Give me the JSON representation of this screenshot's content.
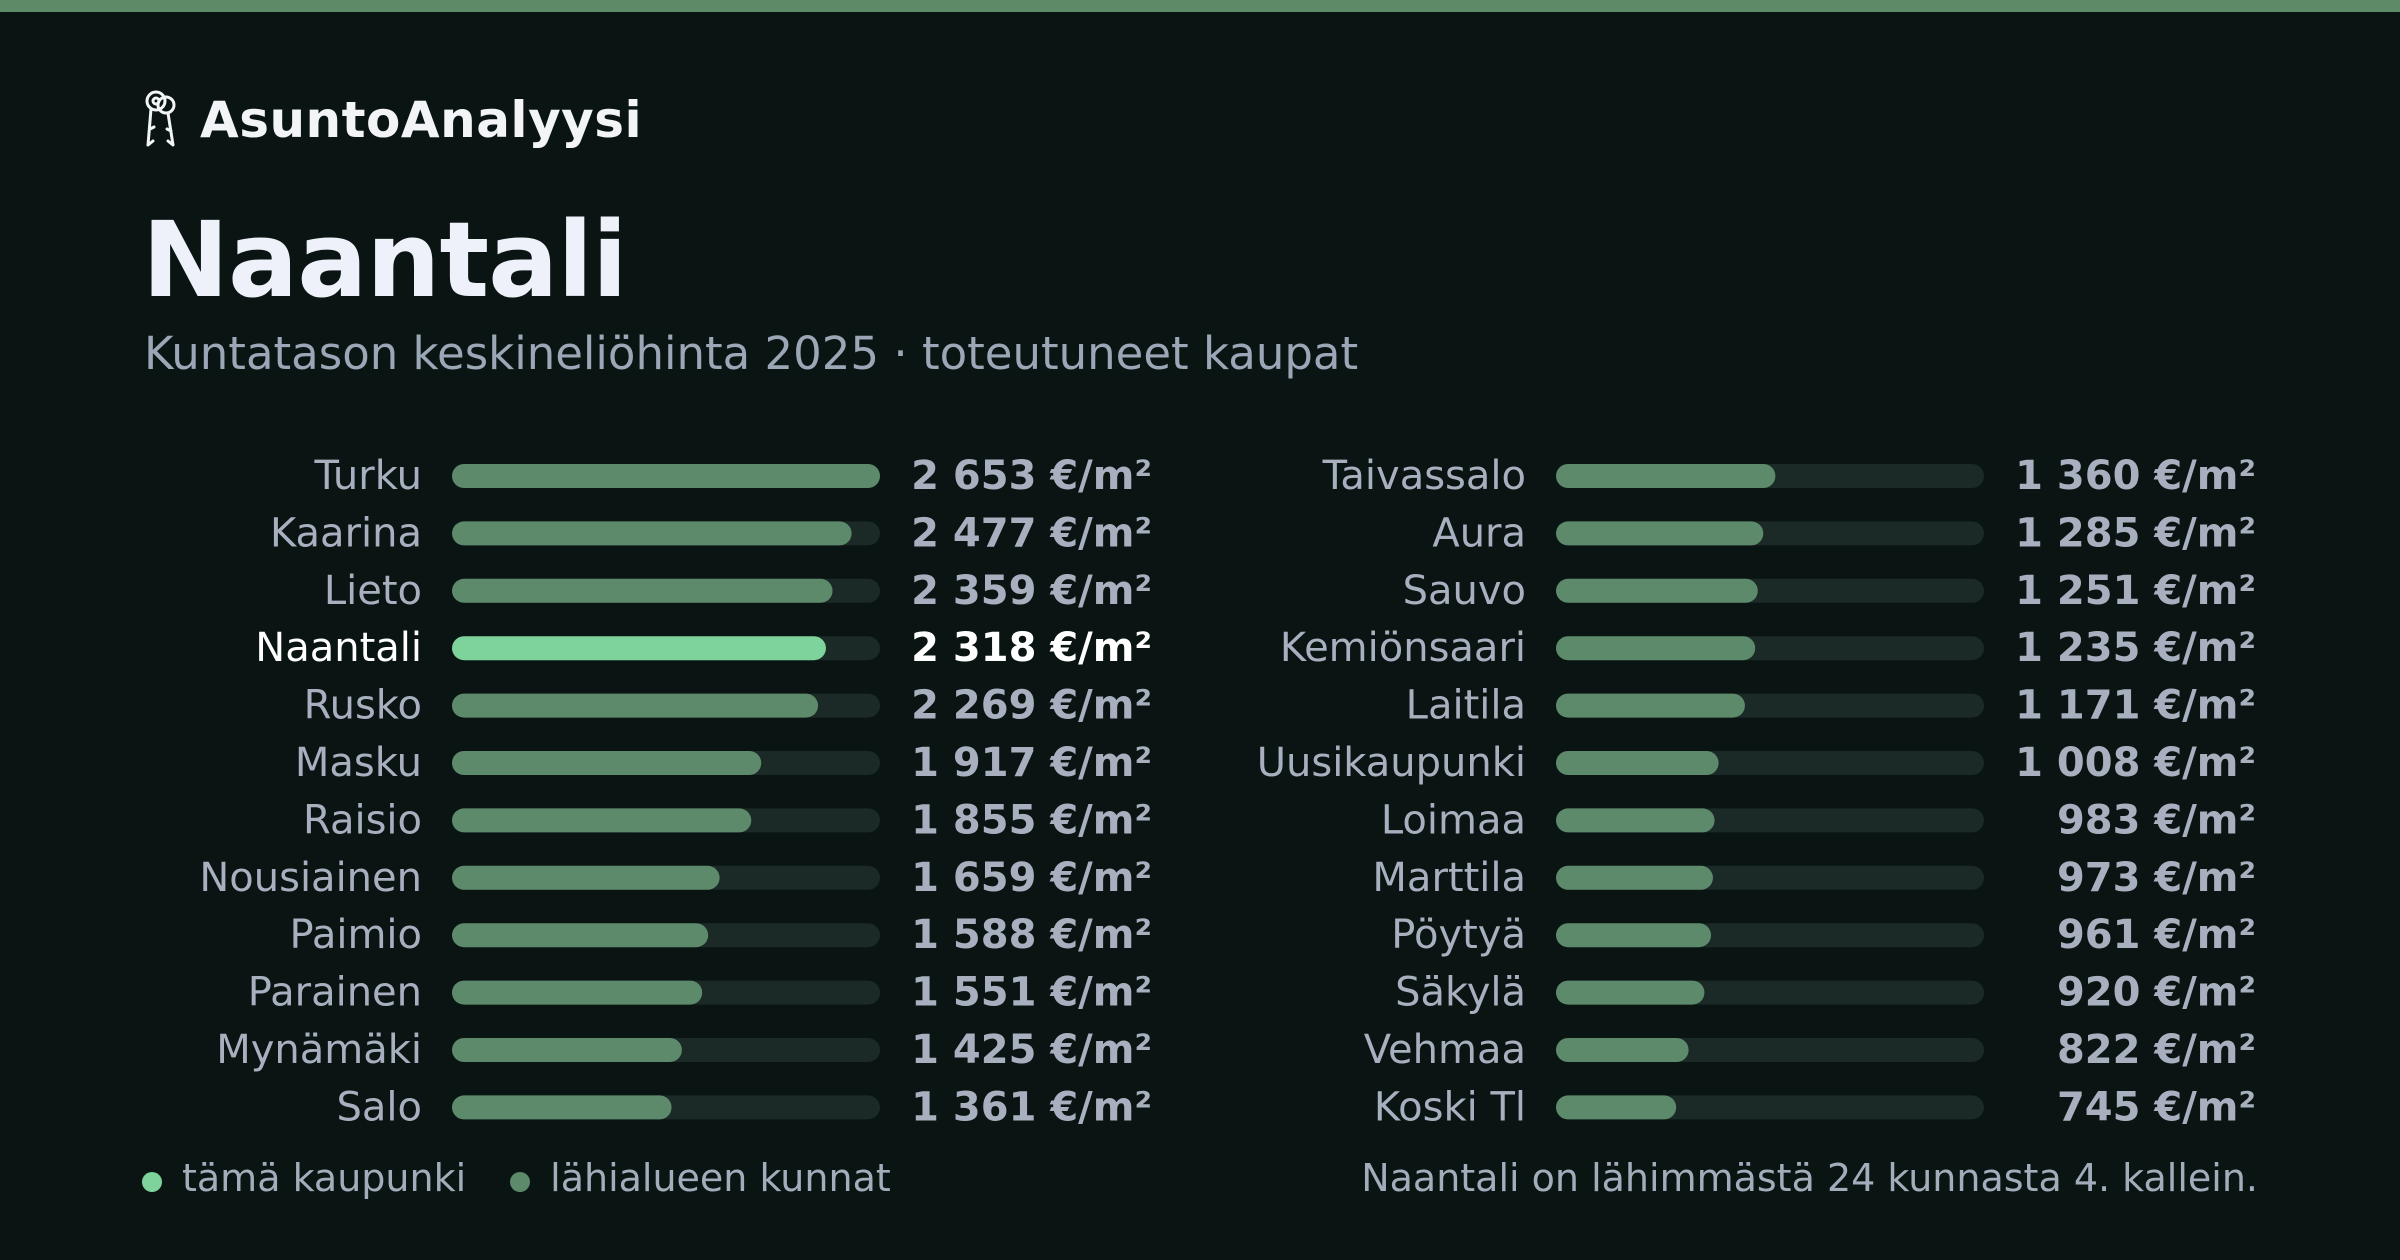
{
  "brand": {
    "name": "AsuntoAnalyysi",
    "icon": "keys-icon"
  },
  "title": "Naantali",
  "subtitle": "Kuntatason keskineliöhinta 2025 · toteutuneet kaupat",
  "colors": {
    "accent_bar": "#7ed39c",
    "normal_bar": "#5e8a6c",
    "track": "#1b2a26",
    "label": "#a8b0bf",
    "highlight_label": "#ffffff",
    "top_stripe": "#5e8a68"
  },
  "legend": {
    "this_city": "tämä kaupunki",
    "nearby": "lähialueen kunnat"
  },
  "footnote": "Naantali on lähimmästä 24 kunnasta 4. kallein.",
  "chart_data": {
    "type": "bar",
    "orientation": "horizontal",
    "highlight": "Naantali",
    "xlim": [
      0,
      2653
    ],
    "categories": [
      "Turku",
      "Kaarina",
      "Lieto",
      "Naantali",
      "Rusko",
      "Masku",
      "Raisio",
      "Nousiainen",
      "Paimio",
      "Parainen",
      "Mynämäki",
      "Salo",
      "Taivassalo",
      "Aura",
      "Sauvo",
      "Kemiönsaari",
      "Laitila",
      "Uusikaupunki",
      "Loimaa",
      "Marttila",
      "Pöytyä",
      "Säkylä",
      "Vehmaa",
      "Koski Tl"
    ],
    "values": [
      2653,
      2477,
      2359,
      2318,
      2269,
      1917,
      1855,
      1659,
      1588,
      1551,
      1425,
      1361,
      1360,
      1285,
      1251,
      1235,
      1171,
      1008,
      983,
      973,
      961,
      920,
      822,
      745
    ],
    "value_labels": [
      "2 653 €/m²",
      "2 477 €/m²",
      "2 359 €/m²",
      "2 318 €/m²",
      "2 269 €/m²",
      "1 917 €/m²",
      "1 855 €/m²",
      "1 659 €/m²",
      "1 588 €/m²",
      "1 551 €/m²",
      "1 425 €/m²",
      "1 361 €/m²",
      "1 360 €/m²",
      "1 285 €/m²",
      "1 251 €/m²",
      "1 235 €/m²",
      "1 171 €/m²",
      "1 008 €/m²",
      "983 €/m²",
      "973 €/m²",
      "961 €/m²",
      "920 €/m²",
      "822 €/m²",
      "745 €/m²"
    ],
    "columns": 2
  }
}
